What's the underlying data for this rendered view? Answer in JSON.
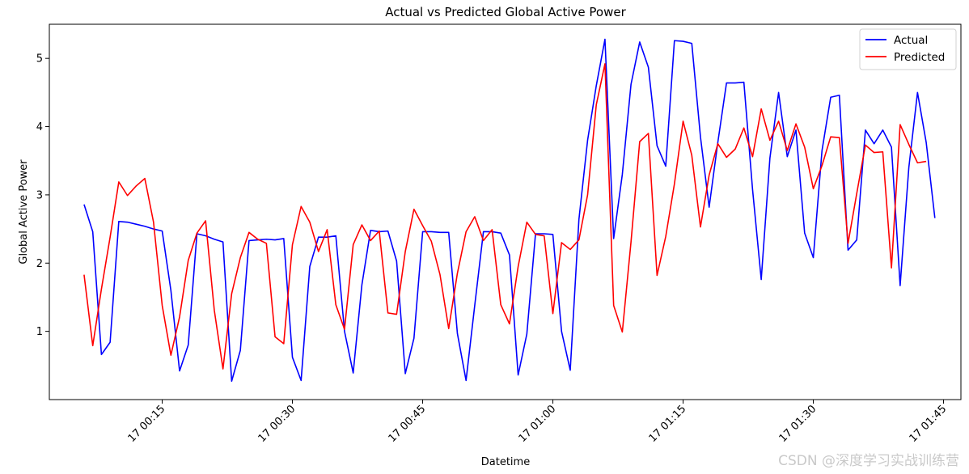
{
  "chart_data": {
    "type": "line",
    "title": "Actual vs Predicted Global Active Power",
    "xlabel": "Datetime",
    "ylabel": "Global Active Power",
    "x_unit": "minute",
    "x_start": "17 00:06",
    "x_step_minutes": 1,
    "xlim": [
      "17 00:02",
      "17 01:47"
    ],
    "ylim": [
      0,
      5.5
    ],
    "xticks": [
      "17 00:15",
      "17 00:30",
      "17 00:45",
      "17 01:00",
      "17 01:15",
      "17 01:30",
      "17 01:45"
    ],
    "yticks": [
      1,
      2,
      3,
      4,
      5
    ],
    "grid": false,
    "legend_position": "top-right",
    "series": [
      {
        "name": "Actual",
        "color": "#0000ff",
        "values": [
          2.86,
          2.46,
          0.66,
          0.84,
          2.61,
          2.6,
          2.57,
          2.54,
          2.5,
          2.47,
          1.6,
          0.42,
          0.8,
          2.43,
          2.4,
          2.35,
          2.31,
          0.27,
          0.72,
          2.33,
          2.34,
          2.35,
          2.34,
          2.36,
          0.62,
          0.28,
          1.95,
          2.38,
          2.38,
          2.4,
          1.0,
          0.39,
          1.68,
          2.48,
          2.46,
          2.47,
          2.03,
          0.38,
          0.9,
          2.46,
          2.46,
          2.45,
          2.45,
          0.97,
          0.28,
          1.38,
          2.46,
          2.46,
          2.44,
          2.12,
          0.36,
          0.96,
          2.43,
          2.43,
          2.42,
          1.0,
          0.43,
          2.64,
          3.8,
          4.6,
          5.28,
          2.36,
          3.3,
          4.62,
          5.24,
          4.87,
          3.72,
          3.42,
          5.26,
          5.25,
          5.22,
          3.85,
          2.82,
          3.77,
          4.64,
          4.64,
          4.65,
          3.08,
          1.76,
          3.54,
          4.5,
          3.56,
          3.95,
          2.44,
          2.08,
          3.65,
          4.43,
          4.46,
          2.19,
          2.34,
          3.95,
          3.75,
          3.95,
          3.7,
          1.67,
          3.4,
          4.5,
          3.77,
          2.66
        ]
      },
      {
        "name": "Predicted",
        "color": "#ff0000",
        "values": [
          1.83,
          0.79,
          1.62,
          2.38,
          3.19,
          2.99,
          3.13,
          3.24,
          2.6,
          1.38,
          0.65,
          1.21,
          2.04,
          2.44,
          2.62,
          1.31,
          0.45,
          1.55,
          2.08,
          2.45,
          2.35,
          2.29,
          0.92,
          0.82,
          2.27,
          2.83,
          2.6,
          2.17,
          2.49,
          1.39,
          1.03,
          2.27,
          2.56,
          2.33,
          2.47,
          1.27,
          1.25,
          2.17,
          2.79,
          2.55,
          2.32,
          1.83,
          1.04,
          1.85,
          2.46,
          2.68,
          2.33,
          2.49,
          1.39,
          1.11,
          1.95,
          2.6,
          2.42,
          2.4,
          1.26,
          2.3,
          2.2,
          2.34,
          3.0,
          4.32,
          4.92,
          1.38,
          0.99,
          2.31,
          3.78,
          3.9,
          1.82,
          2.39,
          3.16,
          4.08,
          3.58,
          2.53,
          3.29,
          3.75,
          3.55,
          3.67,
          3.98,
          3.56,
          4.26,
          3.8,
          4.08,
          3.65,
          4.04,
          3.7,
          3.09,
          3.43,
          3.85,
          3.84,
          2.29,
          3.02,
          3.73,
          3.62,
          3.63,
          1.93,
          4.03,
          3.74,
          3.47,
          3.49
        ]
      }
    ]
  },
  "watermark": "CSDN @深度学习实战训练营"
}
